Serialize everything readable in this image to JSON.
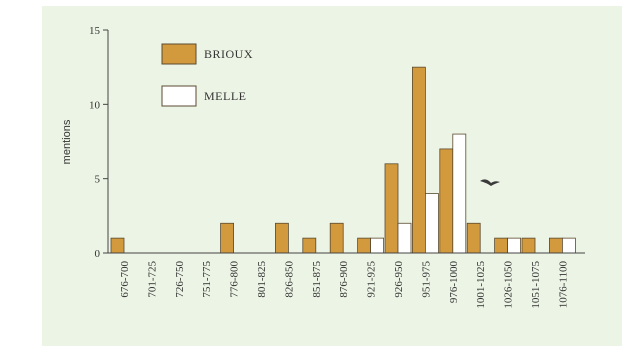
{
  "colors": {
    "panel_background": "#ecf4e5",
    "brioux_fill": "#d29a3c",
    "melle_fill": "#ffffff",
    "bar_stroke": "#5a4a30",
    "axis": "#444444"
  },
  "chart_data": {
    "type": "bar",
    "ylabel": "mentions",
    "xlabel": "",
    "ylim": [
      0,
      15
    ],
    "yticks": [
      "0",
      "5",
      "10",
      "15"
    ],
    "legend_placement": "top-left",
    "grid": false,
    "categories": [
      "676-700",
      "701-725",
      "726-750",
      "751-775",
      "776-800",
      "801-825",
      "826-850",
      "851-875",
      "876-900",
      "921-925",
      "926-950",
      "951-975",
      "976-1000",
      "1001-1025",
      "1026-1050",
      "1051-1075",
      "1076-1100"
    ],
    "series": [
      {
        "name": "BRIOUX",
        "color": "#d29a3c",
        "values": [
          1,
          0,
          0,
          0,
          2,
          0,
          2,
          1,
          2,
          1,
          6,
          12.5,
          7,
          2,
          1,
          1,
          1
        ]
      },
      {
        "name": "MELLE",
        "color": "#ffffff",
        "values": [
          0,
          0,
          0,
          0,
          0,
          0,
          0,
          0,
          0,
          1,
          2,
          4,
          8,
          0,
          1,
          0,
          1
        ]
      }
    ]
  }
}
